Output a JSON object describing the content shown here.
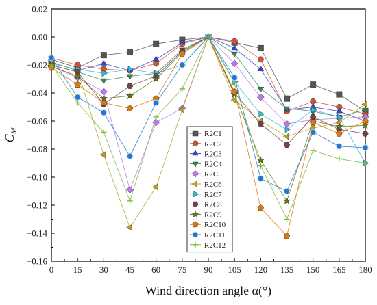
{
  "chart_data": {
    "type": "line",
    "xlabel": "Wind direction angle α(°)",
    "ylabel": "C",
    "ylabel_sub": "M",
    "xlim": [
      0,
      180
    ],
    "ylim": [
      -0.16,
      0.02
    ],
    "x_ticks": [
      "0",
      "15",
      "30",
      "45",
      "60",
      "75",
      "90",
      "105",
      "120",
      "135",
      "150",
      "165",
      "180"
    ],
    "y_ticks": [
      "0.02",
      "0.00",
      "−0.02",
      "−0.04",
      "−0.06",
      "−0.08",
      "−0.10",
      "−0.12",
      "−0.14",
      "−0.16"
    ],
    "x": [
      0,
      15,
      30,
      45,
      60,
      75,
      90,
      105,
      120,
      135,
      150,
      165,
      180
    ],
    "grid": false,
    "legend_position": "center-right",
    "series": [
      {
        "name": "R2C1",
        "color": "#555555",
        "marker": "square",
        "values": [
          -0.016,
          -0.022,
          -0.013,
          -0.011,
          -0.005,
          -0.002,
          0.0,
          -0.004,
          -0.008,
          -0.044,
          -0.034,
          -0.041,
          -0.053
        ]
      },
      {
        "name": "R2C2",
        "color": "#cc5533",
        "marker": "circle",
        "values": [
          -0.015,
          -0.02,
          -0.023,
          -0.024,
          -0.019,
          -0.005,
          0.0,
          -0.003,
          -0.016,
          -0.053,
          -0.046,
          -0.05,
          -0.055
        ]
      },
      {
        "name": "R2C3",
        "color": "#3344dd",
        "marker": "triangle",
        "values": [
          -0.018,
          -0.024,
          -0.019,
          -0.024,
          -0.016,
          -0.004,
          0.0,
          -0.008,
          -0.023,
          -0.052,
          -0.05,
          -0.053,
          -0.06
        ]
      },
      {
        "name": "R2C4",
        "color": "#2e8b57",
        "marker": "tri-down",
        "values": [
          -0.02,
          -0.025,
          -0.031,
          -0.028,
          -0.026,
          -0.009,
          0.0,
          -0.012,
          -0.037,
          -0.051,
          -0.053,
          -0.057,
          -0.052
        ]
      },
      {
        "name": "R2C5",
        "color": "#bb77ee",
        "marker": "diamond",
        "values": [
          -0.021,
          -0.029,
          -0.039,
          -0.109,
          -0.061,
          -0.051,
          0.0,
          -0.019,
          -0.043,
          -0.062,
          -0.059,
          -0.058,
          -0.057
        ]
      },
      {
        "name": "R2C6",
        "color": "#bba322",
        "marker": "tri-left",
        "values": [
          -0.018,
          -0.024,
          -0.084,
          -0.136,
          -0.107,
          -0.052,
          0.0,
          -0.045,
          -0.06,
          -0.071,
          -0.065,
          -0.061,
          -0.048
        ]
      },
      {
        "name": "R2C7",
        "color": "#33bbdd",
        "marker": "tri-right",
        "values": [
          -0.019,
          -0.023,
          -0.026,
          -0.023,
          -0.026,
          -0.02,
          0.0,
          -0.032,
          -0.055,
          -0.066,
          -0.052,
          -0.057,
          -0.09
        ]
      },
      {
        "name": "R2C8",
        "color": "#774444",
        "marker": "hexagon",
        "values": [
          -0.02,
          -0.025,
          -0.048,
          -0.035,
          -0.028,
          -0.01,
          0.0,
          -0.04,
          -0.062,
          -0.077,
          -0.057,
          -0.066,
          -0.069
        ]
      },
      {
        "name": "R2C9",
        "color": "#667711",
        "marker": "star",
        "values": [
          -0.021,
          -0.028,
          -0.044,
          -0.042,
          -0.03,
          -0.011,
          0.0,
          -0.041,
          -0.088,
          -0.117,
          -0.06,
          -0.064,
          -0.063
        ]
      },
      {
        "name": "R2C10",
        "color": "#dd7711",
        "marker": "pentagon",
        "values": [
          -0.022,
          -0.034,
          -0.047,
          -0.051,
          -0.044,
          -0.012,
          0.0,
          -0.039,
          -0.122,
          -0.142,
          -0.061,
          -0.069,
          -0.06
        ]
      },
      {
        "name": "R2C11",
        "color": "#2277cc",
        "marker": "sphere",
        "values": [
          -0.015,
          -0.043,
          -0.054,
          -0.085,
          -0.047,
          -0.02,
          0.0,
          -0.029,
          -0.101,
          -0.11,
          -0.068,
          -0.078,
          -0.079
        ]
      },
      {
        "name": "R2C12",
        "color": "#77bb33",
        "marker": "plus",
        "values": [
          -0.02,
          -0.047,
          -0.068,
          -0.117,
          -0.057,
          -0.037,
          0.0,
          -0.033,
          -0.092,
          -0.13,
          -0.081,
          -0.087,
          -0.09
        ]
      }
    ]
  }
}
